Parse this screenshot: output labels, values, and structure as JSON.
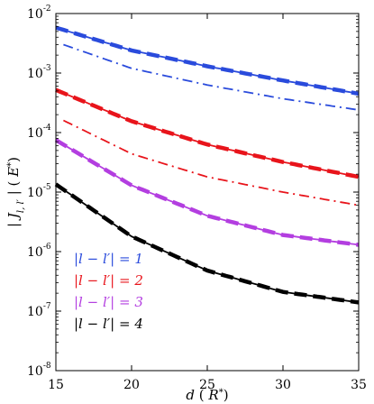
{
  "chart_data": {
    "type": "line",
    "xlabel": "d ( R* )",
    "ylabel": "| J_{l,l'} | ( E* )",
    "xlim": [
      15,
      35
    ],
    "ylim": [
      1e-08,
      0.01
    ],
    "y_scale": "log",
    "x_ticks": [
      "15",
      "20",
      "25",
      "30",
      "35"
    ],
    "y_ticks": [
      {
        "base": "10",
        "exp": "-8"
      },
      {
        "base": "10",
        "exp": "-7"
      },
      {
        "base": "10",
        "exp": "-6"
      },
      {
        "base": "10",
        "exp": "-5"
      },
      {
        "base": "10",
        "exp": "-4"
      },
      {
        "base": "10",
        "exp": "-3"
      },
      {
        "base": "10",
        "exp": "-2"
      }
    ],
    "legend_position": "bottom-left",
    "series": [
      {
        "name": "|l − l′| = 1",
        "color": "#2a4bdc",
        "style": "solid-dashed",
        "x": [
          15,
          20,
          25,
          30,
          35
        ],
        "y": [
          0.0058,
          0.0024,
          0.0013,
          0.00075,
          0.00045
        ]
      },
      {
        "name": "",
        "color": "#2a4bdc",
        "style": "dash-dot",
        "x": [
          15.5,
          20,
          25,
          30,
          35
        ],
        "y": [
          0.003,
          0.0012,
          0.00063,
          0.00037,
          0.00024
        ]
      },
      {
        "name": "|l − l′| = 2",
        "color": "#e8141b",
        "style": "solid-dashed",
        "x": [
          15,
          20,
          25,
          30,
          35
        ],
        "y": [
          0.00052,
          0.000155,
          6.3e-05,
          3.2e-05,
          1.8e-05
        ]
      },
      {
        "name": "",
        "color": "#e8141b",
        "style": "dash-dot",
        "x": [
          15.5,
          20,
          25,
          30,
          35
        ],
        "y": [
          0.00016,
          4.4e-05,
          1.8e-05,
          1e-05,
          6e-06
        ]
      },
      {
        "name": "|l − l′| = 3",
        "color": "#b33ee0",
        "style": "solid-dashed",
        "x": [
          15,
          20,
          25,
          30,
          35
        ],
        "y": [
          7.5e-05,
          1.3e-05,
          4e-06,
          1.9e-06,
          1.3e-06
        ]
      },
      {
        "name": "|l − l′| = 4",
        "color": "#000000",
        "style": "solid-dashed",
        "x": [
          15,
          20,
          25,
          30,
          35
        ],
        "y": [
          1.35e-05,
          1.8e-06,
          4.8e-07,
          2.1e-07,
          1.4e-07
        ]
      }
    ]
  }
}
